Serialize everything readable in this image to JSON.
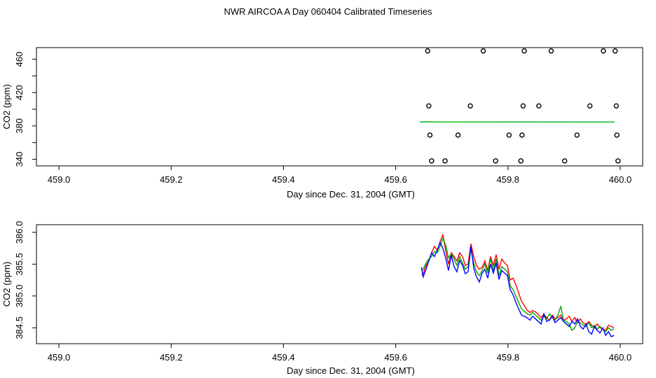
{
  "title": "NWR AIRCOA A  Day 060404  Calibrated Timeseries",
  "chart_data": [
    {
      "type": "scatter",
      "xlabel": "Day since Dec. 31, 2004 (GMT)",
      "ylabel": "CO2 (ppm)",
      "xlim": [
        458.96,
        460.04
      ],
      "ylim": [
        332,
        474
      ],
      "x_ticks": [
        459.0,
        459.2,
        459.4,
        459.6,
        459.8,
        460.0
      ],
      "x_tick_labels": [
        "459.0",
        "459.2",
        "459.4",
        "459.6",
        "459.8",
        "460.0"
      ],
      "y_ticks": [
        340,
        360,
        380,
        400,
        420,
        440,
        460
      ],
      "y_tick_labels": [
        "340",
        "",
        "380",
        "",
        "420",
        "",
        "460"
      ],
      "grid": false,
      "points": [
        {
          "x": 459.657,
          "y": 470
        },
        {
          "x": 459.756,
          "y": 470
        },
        {
          "x": 459.829,
          "y": 470
        },
        {
          "x": 459.877,
          "y": 470
        },
        {
          "x": 459.97,
          "y": 470
        },
        {
          "x": 459.991,
          "y": 470
        },
        {
          "x": 459.659,
          "y": 404
        },
        {
          "x": 459.733,
          "y": 404
        },
        {
          "x": 459.827,
          "y": 404
        },
        {
          "x": 459.855,
          "y": 404
        },
        {
          "x": 459.946,
          "y": 404
        },
        {
          "x": 459.993,
          "y": 404
        },
        {
          "x": 459.661,
          "y": 369
        },
        {
          "x": 459.711,
          "y": 369
        },
        {
          "x": 459.802,
          "y": 369
        },
        {
          "x": 459.825,
          "y": 369
        },
        {
          "x": 459.923,
          "y": 369
        },
        {
          "x": 459.994,
          "y": 369
        },
        {
          "x": 459.664,
          "y": 338
        },
        {
          "x": 459.688,
          "y": 338
        },
        {
          "x": 459.778,
          "y": 338
        },
        {
          "x": 459.823,
          "y": 338
        },
        {
          "x": 459.901,
          "y": 338
        },
        {
          "x": 459.996,
          "y": 338
        }
      ],
      "line_series": [
        {
          "color": "#0000ff",
          "x": [
            459.643,
            459.99
          ],
          "y": [
            384.9,
            384.6
          ]
        },
        {
          "color": "#00cc00",
          "x": [
            459.643,
            459.99
          ],
          "y": [
            384.8,
            384.5
          ]
        }
      ]
    },
    {
      "type": "line",
      "xlabel": "Day since Dec. 31, 2004 (GMT)",
      "ylabel": "CO2 (ppm)",
      "xlim": [
        458.96,
        460.04
      ],
      "ylim": [
        384.25,
        386.12
      ],
      "x_ticks": [
        459.0,
        459.2,
        459.4,
        459.6,
        459.8,
        460.0
      ],
      "x_tick_labels": [
        "459.0",
        "459.2",
        "459.4",
        "459.6",
        "459.8",
        "460.0"
      ],
      "y_ticks": [
        384.5,
        385.0,
        385.5,
        386.0
      ],
      "y_tick_labels": [
        "384.5",
        "385.0",
        "385.5",
        "386.0"
      ],
      "grid": false,
      "series": [
        {
          "color": "#ff0000",
          "x": [
            459.646,
            459.649,
            459.654,
            459.659,
            459.664,
            459.669,
            459.674,
            459.679,
            459.684,
            459.689,
            459.694,
            459.699,
            459.704,
            459.709,
            459.714,
            459.719,
            459.724,
            459.729,
            459.734,
            459.739,
            459.744,
            459.749,
            459.754,
            459.759,
            459.764,
            459.769,
            459.774,
            459.779,
            459.784,
            459.789,
            459.794,
            459.799,
            459.804,
            459.809,
            459.814,
            459.819,
            459.824,
            459.829,
            459.834,
            459.839,
            459.844,
            459.849,
            459.854,
            459.859,
            459.864,
            459.869,
            459.874,
            459.879,
            459.884,
            459.889,
            459.894,
            459.899,
            459.904,
            459.909,
            459.914,
            459.919,
            459.924,
            459.929,
            459.934,
            459.939,
            459.944,
            459.949,
            459.954,
            459.959,
            459.964,
            459.969,
            459.974,
            459.979,
            459.984,
            459.989
          ],
          "y": [
            385.33,
            385.35,
            385.48,
            385.55,
            385.68,
            385.78,
            385.72,
            385.85,
            385.96,
            385.72,
            385.5,
            385.68,
            385.62,
            385.55,
            385.68,
            385.62,
            385.48,
            385.5,
            385.82,
            385.62,
            385.48,
            385.42,
            385.45,
            385.55,
            385.4,
            385.62,
            385.48,
            385.65,
            385.42,
            385.58,
            385.52,
            385.48,
            385.25,
            385.28,
            385.18,
            385.05,
            384.92,
            384.85,
            384.78,
            384.74,
            384.77,
            384.75,
            384.71,
            384.66,
            384.71,
            384.66,
            384.62,
            384.7,
            384.64,
            384.66,
            384.7,
            384.62,
            384.64,
            384.68,
            384.6,
            384.66,
            384.58,
            384.64,
            384.58,
            384.55,
            384.6,
            384.54,
            384.5,
            384.56,
            384.5,
            384.48,
            384.46,
            384.54,
            384.52,
            384.5
          ]
        },
        {
          "color": "#00aa00",
          "x": [
            459.646,
            459.649,
            459.654,
            459.659,
            459.664,
            459.669,
            459.674,
            459.679,
            459.684,
            459.689,
            459.694,
            459.699,
            459.704,
            459.709,
            459.714,
            459.719,
            459.724,
            459.729,
            459.734,
            459.739,
            459.744,
            459.749,
            459.754,
            459.759,
            459.764,
            459.769,
            459.774,
            459.779,
            459.784,
            459.789,
            459.794,
            459.799,
            459.804,
            459.809,
            459.814,
            459.819,
            459.824,
            459.829,
            459.834,
            459.839,
            459.844,
            459.849,
            459.854,
            459.859,
            459.864,
            459.869,
            459.874,
            459.879,
            459.884,
            459.889,
            459.894,
            459.899,
            459.904,
            459.909,
            459.914,
            459.919,
            459.924,
            459.929,
            459.934,
            459.939,
            459.944,
            459.949,
            459.954,
            459.959,
            459.964,
            459.969,
            459.974,
            459.979,
            459.984,
            459.989
          ],
          "y": [
            385.4,
            385.42,
            385.52,
            385.58,
            385.62,
            385.7,
            385.68,
            385.78,
            385.9,
            385.8,
            385.6,
            385.66,
            385.58,
            385.48,
            385.62,
            385.52,
            385.42,
            385.46,
            385.74,
            385.52,
            385.38,
            385.32,
            385.4,
            385.5,
            385.36,
            385.58,
            385.4,
            385.58,
            385.32,
            385.46,
            385.42,
            385.38,
            385.16,
            385.1,
            385.0,
            384.9,
            384.8,
            384.76,
            384.72,
            384.7,
            384.74,
            384.7,
            384.66,
            384.62,
            384.68,
            384.64,
            384.72,
            384.66,
            384.62,
            384.7,
            384.84,
            384.62,
            384.6,
            384.56,
            384.46,
            384.5,
            384.6,
            384.58,
            384.54,
            384.52,
            384.58,
            384.5,
            384.54,
            384.48,
            384.52,
            384.48,
            384.44,
            384.5,
            384.46,
            384.48
          ]
        },
        {
          "color": "#0000ff",
          "x": [
            459.646,
            459.649,
            459.654,
            459.659,
            459.664,
            459.669,
            459.674,
            459.679,
            459.684,
            459.689,
            459.694,
            459.699,
            459.704,
            459.709,
            459.714,
            459.719,
            459.724,
            459.729,
            459.734,
            459.739,
            459.744,
            459.749,
            459.754,
            459.759,
            459.764,
            459.769,
            459.774,
            459.779,
            459.784,
            459.789,
            459.794,
            459.799,
            459.804,
            459.809,
            459.814,
            459.819,
            459.824,
            459.829,
            459.834,
            459.839,
            459.844,
            459.849,
            459.854,
            459.859,
            459.864,
            459.869,
            459.874,
            459.879,
            459.884,
            459.889,
            459.894,
            459.899,
            459.904,
            459.909,
            459.914,
            459.919,
            459.924,
            459.929,
            459.934,
            459.939,
            459.944,
            459.949,
            459.954,
            459.959,
            459.964,
            459.969,
            459.974,
            459.979,
            459.984,
            459.989
          ],
          "y": [
            385.45,
            385.3,
            385.42,
            385.55,
            385.68,
            385.62,
            385.72,
            385.84,
            385.75,
            385.6,
            385.4,
            385.64,
            385.46,
            385.38,
            385.56,
            385.48,
            385.35,
            385.38,
            385.78,
            385.44,
            385.3,
            385.22,
            385.36,
            385.42,
            385.28,
            385.5,
            385.36,
            385.52,
            385.26,
            385.4,
            385.36,
            385.32,
            385.1,
            385.02,
            384.9,
            384.8,
            384.7,
            384.68,
            384.66,
            384.62,
            384.68,
            384.64,
            384.6,
            384.56,
            384.72,
            384.6,
            384.62,
            384.68,
            384.58,
            384.62,
            384.66,
            384.6,
            384.56,
            384.52,
            384.6,
            384.56,
            384.64,
            384.52,
            384.48,
            384.56,
            384.44,
            384.4,
            384.52,
            384.46,
            384.42,
            384.5,
            384.38,
            384.44,
            384.36,
            384.38
          ]
        }
      ]
    }
  ]
}
